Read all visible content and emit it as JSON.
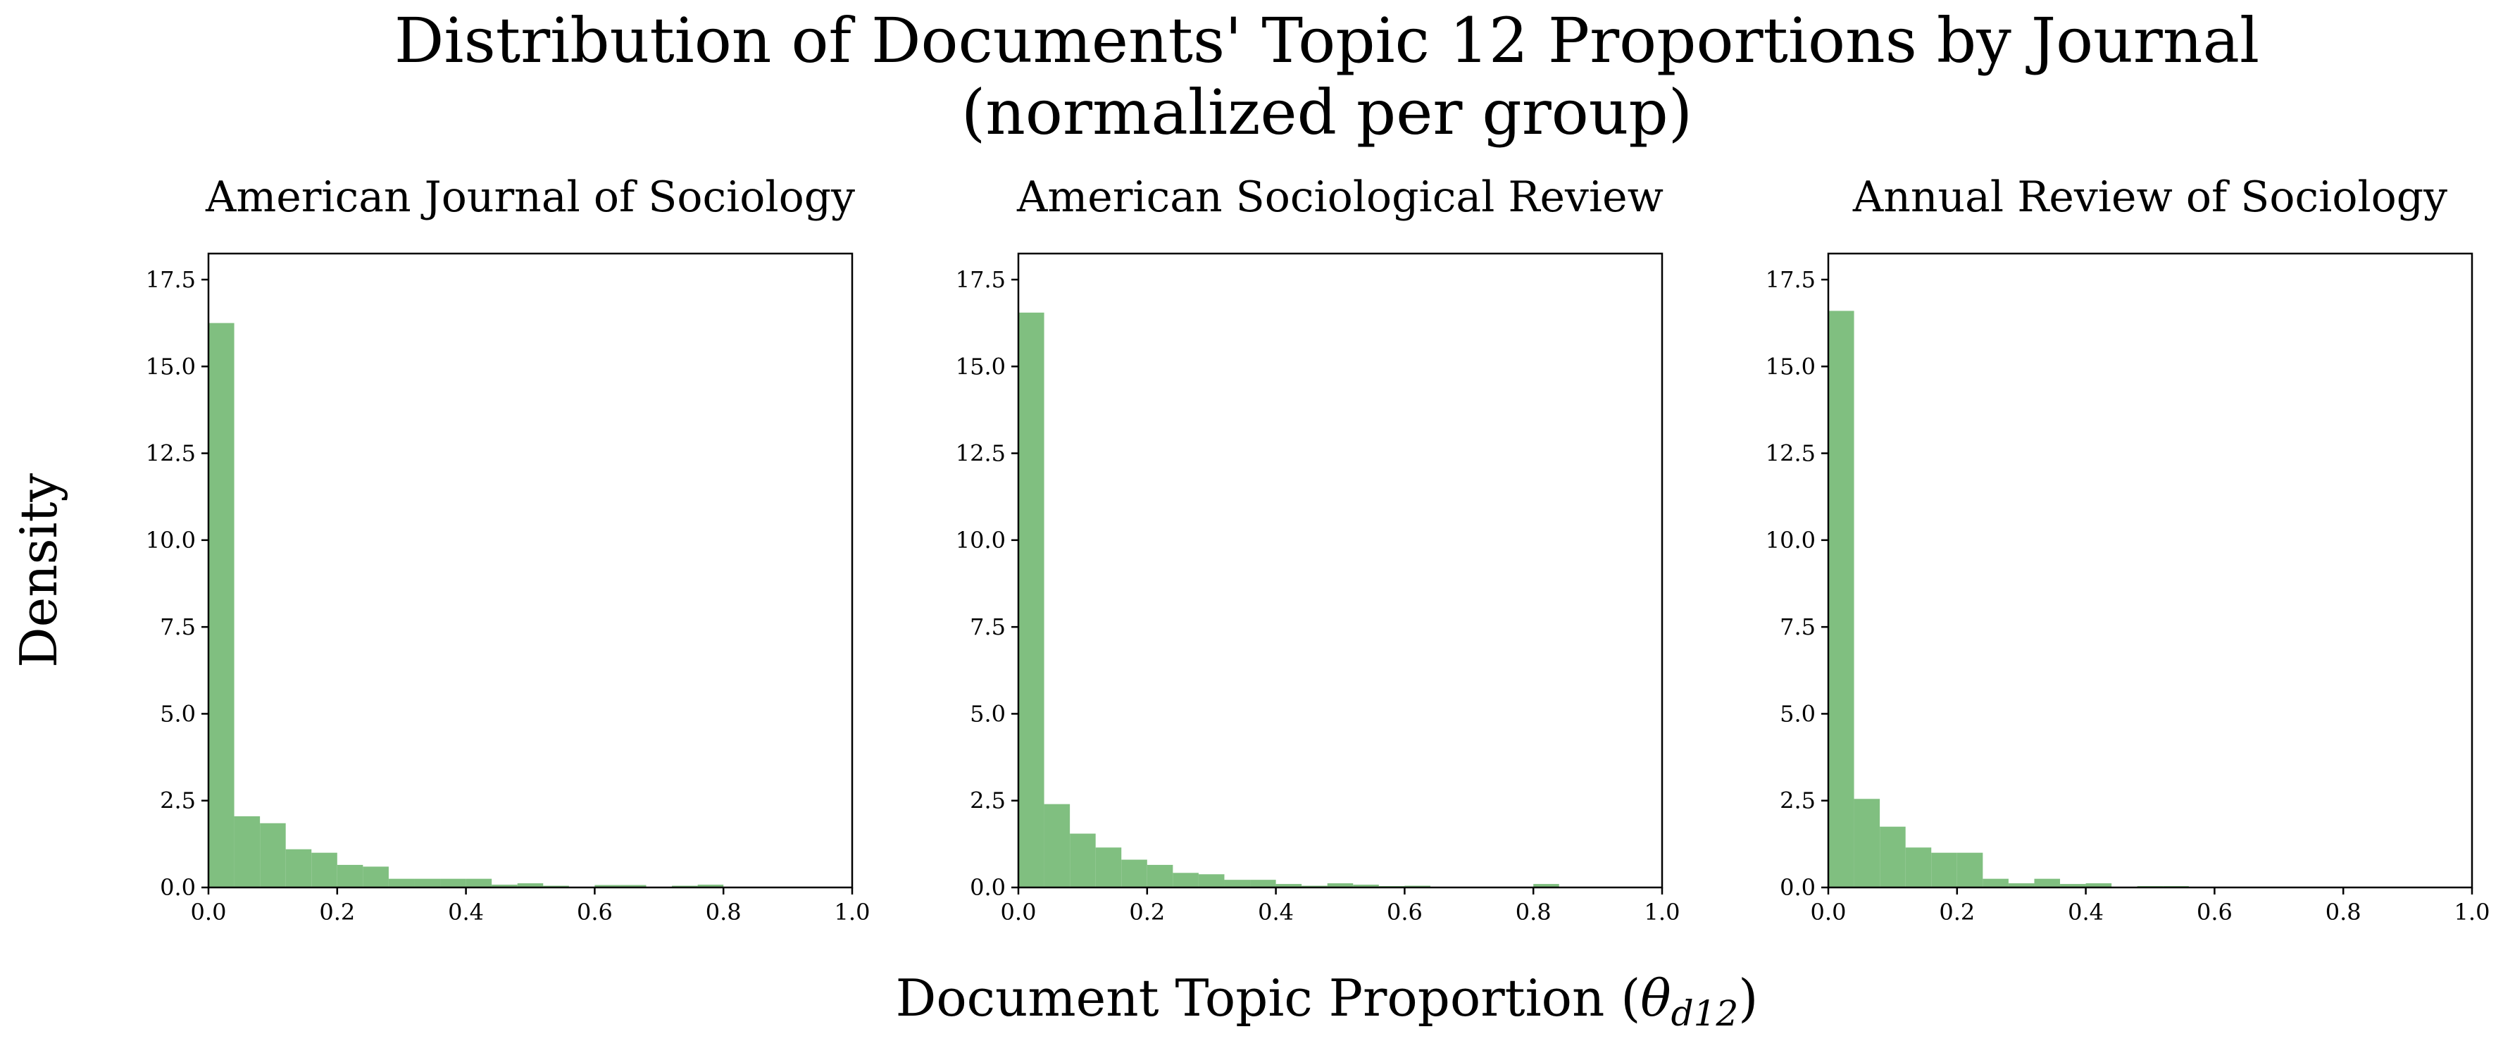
{
  "figure": {
    "title_line1": "Distribution of Documents' Topic 12 Proportions by Journal",
    "title_line2": "(normalized per group)",
    "xlabel_prefix": "Document Topic Proportion (",
    "xlabel_theta": "θ",
    "xlabel_sub": "d12",
    "xlabel_suffix": ")",
    "ylabel": "Density",
    "bar_color": "#80bf80"
  },
  "chart_data": [
    {
      "type": "bar",
      "title": "American Journal of Sociology",
      "xlabel": "Document Topic Proportion (θd12)",
      "ylabel": "Density",
      "bin_width": 0.04,
      "bin_starts": [
        0.0,
        0.04,
        0.08,
        0.12,
        0.16,
        0.2,
        0.24,
        0.28,
        0.32,
        0.36,
        0.4,
        0.44,
        0.48,
        0.52,
        0.56,
        0.6,
        0.64,
        0.68,
        0.72,
        0.76,
        0.8,
        0.84,
        0.88,
        0.92,
        0.96
      ],
      "values": [
        16.25,
        2.05,
        1.85,
        1.1,
        1.0,
        0.65,
        0.6,
        0.25,
        0.25,
        0.25,
        0.25,
        0.08,
        0.12,
        0.05,
        0.0,
        0.07,
        0.07,
        0.0,
        0.05,
        0.08,
        0.0,
        0.0,
        0.0,
        0.0,
        0.0
      ],
      "xlim": [
        0,
        1.0
      ],
      "ylim": [
        0,
        18.25
      ],
      "xticks": [
        "0.0",
        "0.2",
        "0.4",
        "0.6",
        "0.8",
        "1.0"
      ],
      "yticks": [
        "0.0",
        "2.5",
        "5.0",
        "7.5",
        "10.0",
        "12.5",
        "15.0",
        "17.5"
      ],
      "grid": false
    },
    {
      "type": "bar",
      "title": "American Sociological Review",
      "xlabel": "Document Topic Proportion (θd12)",
      "ylabel": "Density",
      "bin_width": 0.04,
      "bin_starts": [
        0.0,
        0.04,
        0.08,
        0.12,
        0.16,
        0.2,
        0.24,
        0.28,
        0.32,
        0.36,
        0.4,
        0.44,
        0.48,
        0.52,
        0.56,
        0.6,
        0.64,
        0.68,
        0.72,
        0.76,
        0.8,
        0.84,
        0.88,
        0.92,
        0.96
      ],
      "values": [
        16.55,
        2.4,
        1.55,
        1.15,
        0.8,
        0.65,
        0.42,
        0.38,
        0.22,
        0.22,
        0.1,
        0.05,
        0.12,
        0.08,
        0.04,
        0.05,
        0.0,
        0.0,
        0.0,
        0.0,
        0.1,
        0.0,
        0.0,
        0.0,
        0.0
      ],
      "xlim": [
        0,
        1.0
      ],
      "ylim": [
        0,
        18.25
      ],
      "xticks": [
        "0.0",
        "0.2",
        "0.4",
        "0.6",
        "0.8",
        "1.0"
      ],
      "yticks": [
        "0.0",
        "2.5",
        "5.0",
        "7.5",
        "10.0",
        "12.5",
        "15.0",
        "17.5"
      ],
      "grid": false
    },
    {
      "type": "bar",
      "title": "Annual Review of Sociology",
      "xlabel": "Document Topic Proportion (θd12)",
      "ylabel": "Density",
      "bin_width": 0.04,
      "bin_starts": [
        0.0,
        0.04,
        0.08,
        0.12,
        0.16,
        0.2,
        0.24,
        0.28,
        0.32,
        0.36,
        0.4,
        0.44,
        0.48,
        0.52,
        0.56,
        0.6,
        0.64,
        0.68,
        0.72,
        0.76,
        0.8,
        0.84,
        0.88,
        0.92,
        0.96
      ],
      "values": [
        16.6,
        2.55,
        1.75,
        1.15,
        1.0,
        1.0,
        0.25,
        0.12,
        0.25,
        0.1,
        0.12,
        0.0,
        0.04,
        0.04,
        0.0,
        0.0,
        0.0,
        0.0,
        0.0,
        0.0,
        0.0,
        0.0,
        0.0,
        0.0,
        0.0
      ],
      "xlim": [
        0,
        1.0
      ],
      "ylim": [
        0,
        18.25
      ],
      "xticks": [
        "0.0",
        "0.2",
        "0.4",
        "0.6",
        "0.8",
        "1.0"
      ],
      "yticks": [
        "0.0",
        "2.5",
        "5.0",
        "7.5",
        "10.0",
        "12.5",
        "15.0",
        "17.5"
      ],
      "grid": false
    }
  ]
}
